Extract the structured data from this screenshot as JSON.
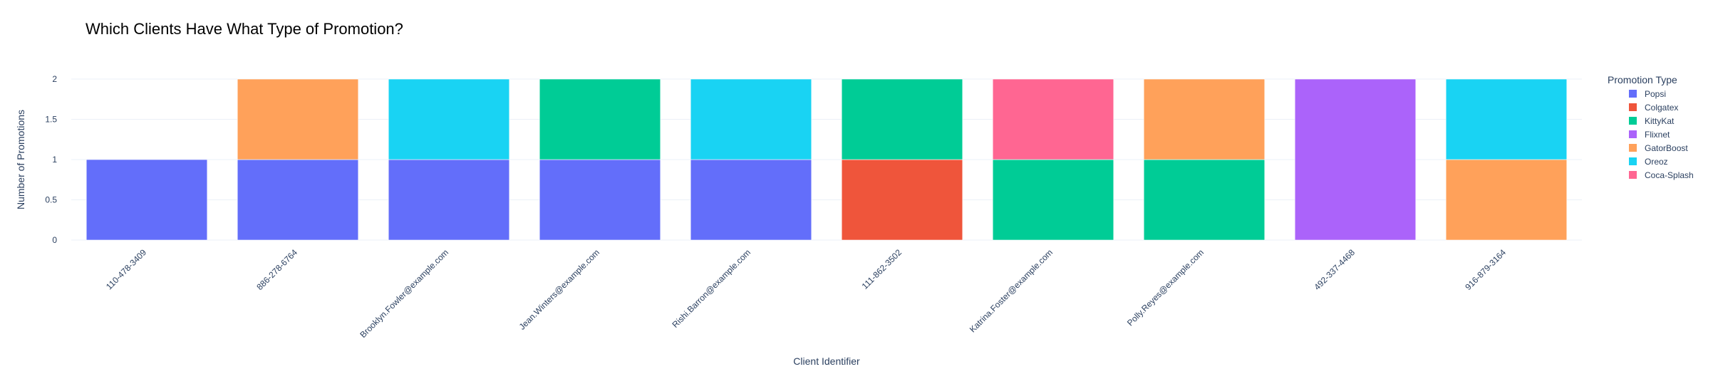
{
  "chart_data": {
    "type": "bar",
    "barmode": "stack",
    "title": "Which Clients Have What Type of Promotion?",
    "xlabel": "Client Identifier",
    "ylabel": "Number of Promotions",
    "ylim": [
      0,
      2
    ],
    "yticks": [
      "0",
      "0.5",
      "1",
      "1.5",
      "2"
    ],
    "grid": true,
    "legend_title": "Promotion Type",
    "legend_position": "right",
    "categories": [
      "110-478-3409",
      "886-278-6764",
      "Brooklyn.Fowler@example.com",
      "Jean.Winters@example.com",
      "Rishi.Barron@example.com",
      "111-862-3502",
      "Katrina.Foster@example.com",
      "Polly.Reyes@example.com",
      "492-337-4468",
      "916-879-3164"
    ],
    "series": [
      {
        "name": "Popsi",
        "color": "#636efa",
        "values": [
          1,
          1,
          1,
          1,
          1,
          0,
          0,
          0,
          0,
          0
        ]
      },
      {
        "name": "Colgatex",
        "color": "#ef553b",
        "values": [
          0,
          0,
          0,
          0,
          0,
          1,
          0,
          0,
          0,
          0
        ]
      },
      {
        "name": "KittyKat",
        "color": "#00cc96",
        "values": [
          0,
          0,
          0,
          1,
          0,
          1,
          1,
          1,
          0,
          0
        ]
      },
      {
        "name": "Flixnet",
        "color": "#ab63fa",
        "values": [
          0,
          0,
          0,
          0,
          0,
          0,
          0,
          0,
          2,
          0
        ]
      },
      {
        "name": "GatorBoost",
        "color": "#ffa15a",
        "values": [
          0,
          1,
          0,
          0,
          0,
          0,
          0,
          1,
          0,
          1
        ]
      },
      {
        "name": "Oreoz",
        "color": "#19d3f3",
        "values": [
          0,
          0,
          1,
          0,
          1,
          0,
          0,
          0,
          0,
          1
        ]
      },
      {
        "name": "Coca-Splash",
        "color": "#ff6692",
        "values": [
          0,
          0,
          0,
          0,
          0,
          0,
          1,
          0,
          0,
          0
        ]
      }
    ]
  }
}
